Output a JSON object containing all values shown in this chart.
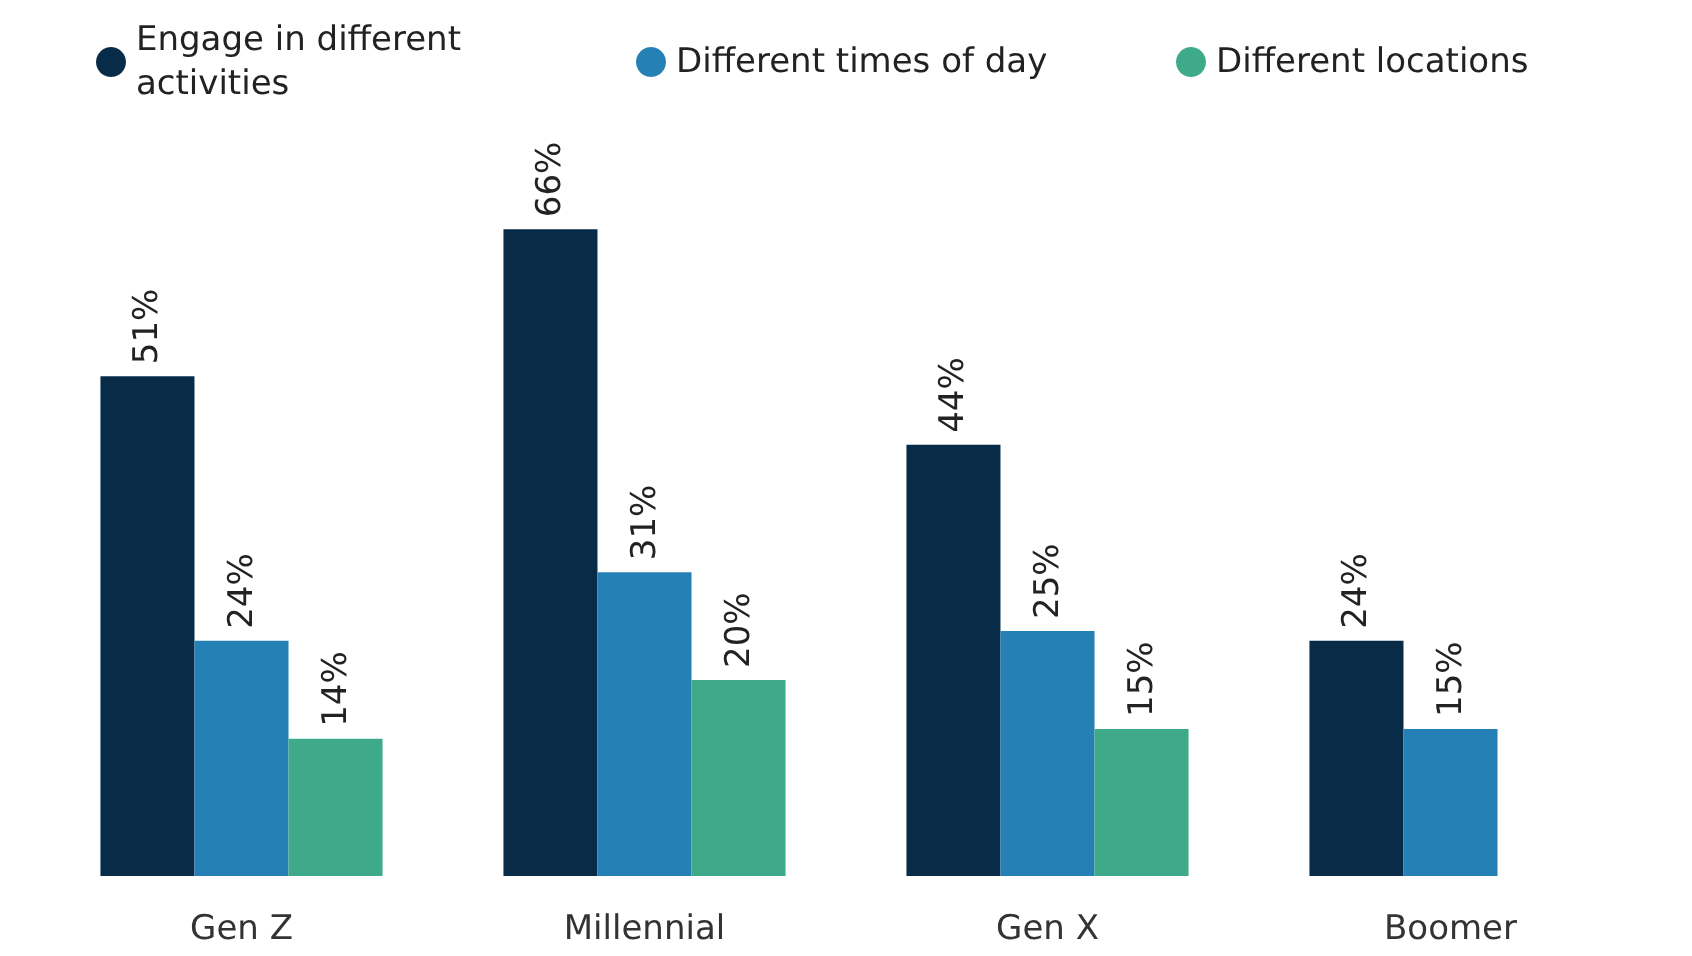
{
  "chart_data": {
    "type": "bar",
    "categories": [
      "Gen Z",
      "Millennial",
      "Gen X",
      "Boomer"
    ],
    "series": [
      {
        "name": "Engage in different activities",
        "color": "#082b48",
        "values": [
          51,
          66,
          44,
          24
        ],
        "value_labels": [
          "51%",
          "66%",
          "44%",
          "24%"
        ]
      },
      {
        "name": "Different times of day",
        "color": "#2580b5",
        "values": [
          24,
          31,
          25,
          15
        ],
        "value_labels": [
          "24%",
          "31%",
          "25%",
          "15%"
        ]
      },
      {
        "name": "Different locations",
        "color": "#3eaa8a",
        "values": [
          14,
          20,
          15,
          null
        ],
        "value_labels": [
          "14%",
          "20%",
          "15%",
          null
        ]
      }
    ],
    "legend": "top"
  }
}
